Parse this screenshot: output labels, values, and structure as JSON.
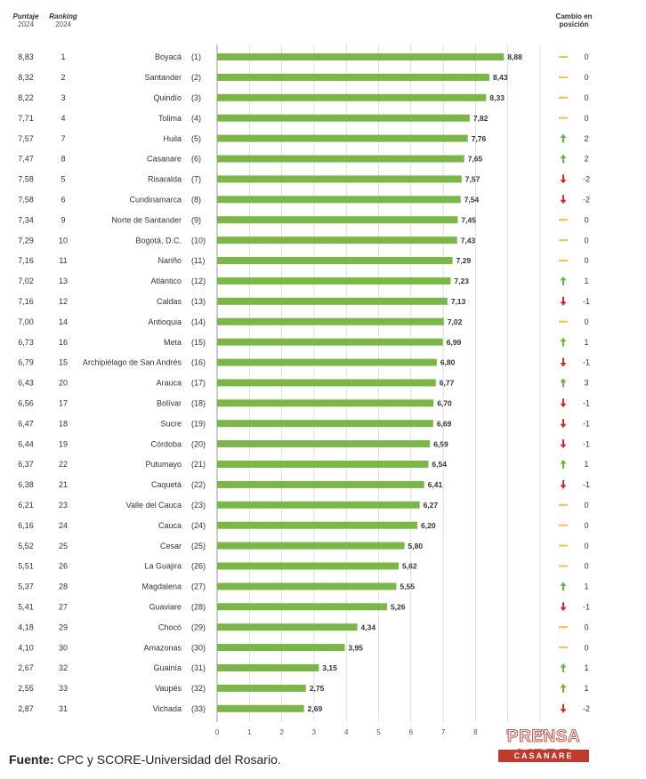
{
  "headers": {
    "score_title": "Puntaje",
    "score_year": "2024",
    "rank_title": "Ranking",
    "rank_year": "2024",
    "change_title_1": "Cambio en",
    "change_title_2": "posición"
  },
  "source": {
    "label": "Fuente:",
    "text": "CPC y SCORE-Universidad del Rosario."
  },
  "logo": {
    "top": "PRENSA LIBRE",
    "bottom": "CASANARE"
  },
  "colors": {
    "bar": "#7ab648",
    "up": "#6ab23f",
    "down": "#d0282c",
    "same": "#f0c24a"
  },
  "chart_data": {
    "type": "bar",
    "orientation": "horizontal",
    "xlim": [
      0,
      10
    ],
    "xticks": [
      0,
      1,
      2,
      3,
      4,
      5,
      6,
      7,
      8,
      9,
      10
    ],
    "grid": true,
    "rows": [
      {
        "score2024": "8,83",
        "rank2024": "1",
        "department": "Boyacá",
        "prev_rank": "(1)",
        "value": 8.88,
        "value_label": "8,88",
        "change": "0",
        "trend": "same"
      },
      {
        "score2024": "8,32",
        "rank2024": "2",
        "department": "Santander",
        "prev_rank": "(2)",
        "value": 8.43,
        "value_label": "8,43",
        "change": "0",
        "trend": "same"
      },
      {
        "score2024": "8,22",
        "rank2024": "3",
        "department": "Quindío",
        "prev_rank": "(3)",
        "value": 8.33,
        "value_label": "8,33",
        "change": "0",
        "trend": "same"
      },
      {
        "score2024": "7,71",
        "rank2024": "4",
        "department": "Tolima",
        "prev_rank": "(4)",
        "value": 7.82,
        "value_label": "7,82",
        "change": "0",
        "trend": "same"
      },
      {
        "score2024": "7,57",
        "rank2024": "7",
        "department": "Huila",
        "prev_rank": "(5)",
        "value": 7.76,
        "value_label": "7,76",
        "change": "2",
        "trend": "up"
      },
      {
        "score2024": "7,47",
        "rank2024": "8",
        "department": "Casanare",
        "prev_rank": "(6)",
        "value": 7.65,
        "value_label": "7,65",
        "change": "2",
        "trend": "up"
      },
      {
        "score2024": "7,58",
        "rank2024": "5",
        "department": "Risaralda",
        "prev_rank": "(7)",
        "value": 7.57,
        "value_label": "7,57",
        "change": "-2",
        "trend": "down"
      },
      {
        "score2024": "7,58",
        "rank2024": "6",
        "department": "Cundinamarca",
        "prev_rank": "(8)",
        "value": 7.54,
        "value_label": "7,54",
        "change": "-2",
        "trend": "down"
      },
      {
        "score2024": "7,34",
        "rank2024": "9",
        "department": "Norte de Santander",
        "prev_rank": "(9)",
        "value": 7.45,
        "value_label": "7,45",
        "change": "0",
        "trend": "same"
      },
      {
        "score2024": "7,29",
        "rank2024": "10",
        "department": "Bogotá, D.C.",
        "prev_rank": "(10)",
        "value": 7.43,
        "value_label": "7,43",
        "change": "0",
        "trend": "same"
      },
      {
        "score2024": "7,16",
        "rank2024": "11",
        "department": "Nariño",
        "prev_rank": "(11)",
        "value": 7.29,
        "value_label": "7,29",
        "change": "0",
        "trend": "same"
      },
      {
        "score2024": "7,02",
        "rank2024": "13",
        "department": "Atlántico",
        "prev_rank": "(12)",
        "value": 7.23,
        "value_label": "7,23",
        "change": "1",
        "trend": "up"
      },
      {
        "score2024": "7,16",
        "rank2024": "12",
        "department": "Caldas",
        "prev_rank": "(13)",
        "value": 7.13,
        "value_label": "7,13",
        "change": "-1",
        "trend": "down"
      },
      {
        "score2024": "7,00",
        "rank2024": "14",
        "department": "Antioquia",
        "prev_rank": "(14)",
        "value": 7.02,
        "value_label": "7,02",
        "change": "0",
        "trend": "same"
      },
      {
        "score2024": "6,73",
        "rank2024": "16",
        "department": "Meta",
        "prev_rank": "(15)",
        "value": 6.99,
        "value_label": "6,99",
        "change": "1",
        "trend": "up"
      },
      {
        "score2024": "6,79",
        "rank2024": "15",
        "department": "Archipiélago de San Andrés",
        "prev_rank": "(16)",
        "value": 6.8,
        "value_label": "6,80",
        "change": "-1",
        "trend": "down"
      },
      {
        "score2024": "6,43",
        "rank2024": "20",
        "department": "Arauca",
        "prev_rank": "(17)",
        "value": 6.77,
        "value_label": "6,77",
        "change": "3",
        "trend": "up"
      },
      {
        "score2024": "6,56",
        "rank2024": "17",
        "department": "Bolívar",
        "prev_rank": "(18)",
        "value": 6.7,
        "value_label": "6,70",
        "change": "-1",
        "trend": "down"
      },
      {
        "score2024": "6,47",
        "rank2024": "18",
        "department": "Sucre",
        "prev_rank": "(19)",
        "value": 6.69,
        "value_label": "6,69",
        "change": "-1",
        "trend": "down"
      },
      {
        "score2024": "6,44",
        "rank2024": "19",
        "department": "Córdoba",
        "prev_rank": "(20)",
        "value": 6.59,
        "value_label": "6,59",
        "change": "-1",
        "trend": "down"
      },
      {
        "score2024": "6,37",
        "rank2024": "22",
        "department": "Putumayo",
        "prev_rank": "(21)",
        "value": 6.54,
        "value_label": "6,54",
        "change": "1",
        "trend": "up"
      },
      {
        "score2024": "6,38",
        "rank2024": "21",
        "department": "Caquetá",
        "prev_rank": "(22)",
        "value": 6.41,
        "value_label": "6,41",
        "change": "-1",
        "trend": "down"
      },
      {
        "score2024": "6,21",
        "rank2024": "23",
        "department": "Valle del Cauca",
        "prev_rank": "(23)",
        "value": 6.27,
        "value_label": "6,27",
        "change": "0",
        "trend": "same"
      },
      {
        "score2024": "6,16",
        "rank2024": "24",
        "department": "Cauca",
        "prev_rank": "(24)",
        "value": 6.2,
        "value_label": "6,20",
        "change": "0",
        "trend": "same"
      },
      {
        "score2024": "5,52",
        "rank2024": "25",
        "department": "Cesar",
        "prev_rank": "(25)",
        "value": 5.8,
        "value_label": "5,80",
        "change": "0",
        "trend": "same"
      },
      {
        "score2024": "5,51",
        "rank2024": "26",
        "department": "La Guajira",
        "prev_rank": "(26)",
        "value": 5.62,
        "value_label": "5,62",
        "change": "0",
        "trend": "same"
      },
      {
        "score2024": "5,37",
        "rank2024": "28",
        "department": "Magdalena",
        "prev_rank": "(27)",
        "value": 5.55,
        "value_label": "5,55",
        "change": "1",
        "trend": "up"
      },
      {
        "score2024": "5,41",
        "rank2024": "27",
        "department": "Guaviare",
        "prev_rank": "(28)",
        "value": 5.26,
        "value_label": "5,26",
        "change": "-1",
        "trend": "down"
      },
      {
        "score2024": "4,18",
        "rank2024": "29",
        "department": "Chocó",
        "prev_rank": "(29)",
        "value": 4.34,
        "value_label": "4,34",
        "change": "0",
        "trend": "same"
      },
      {
        "score2024": "4,10",
        "rank2024": "30",
        "department": "Amazonas",
        "prev_rank": "(30)",
        "value": 3.95,
        "value_label": "3,95",
        "change": "0",
        "trend": "same"
      },
      {
        "score2024": "2,67",
        "rank2024": "32",
        "department": "Guainía",
        "prev_rank": "(31)",
        "value": 3.15,
        "value_label": "3,15",
        "change": "1",
        "trend": "up"
      },
      {
        "score2024": "2,55",
        "rank2024": "33",
        "department": "Vaupés",
        "prev_rank": "(32)",
        "value": 2.75,
        "value_label": "2,75",
        "change": "1",
        "trend": "up"
      },
      {
        "score2024": "2,87",
        "rank2024": "31",
        "department": "Vichada",
        "prev_rank": "(33)",
        "value": 2.69,
        "value_label": "2,69",
        "change": "-2",
        "trend": "down"
      }
    ]
  }
}
